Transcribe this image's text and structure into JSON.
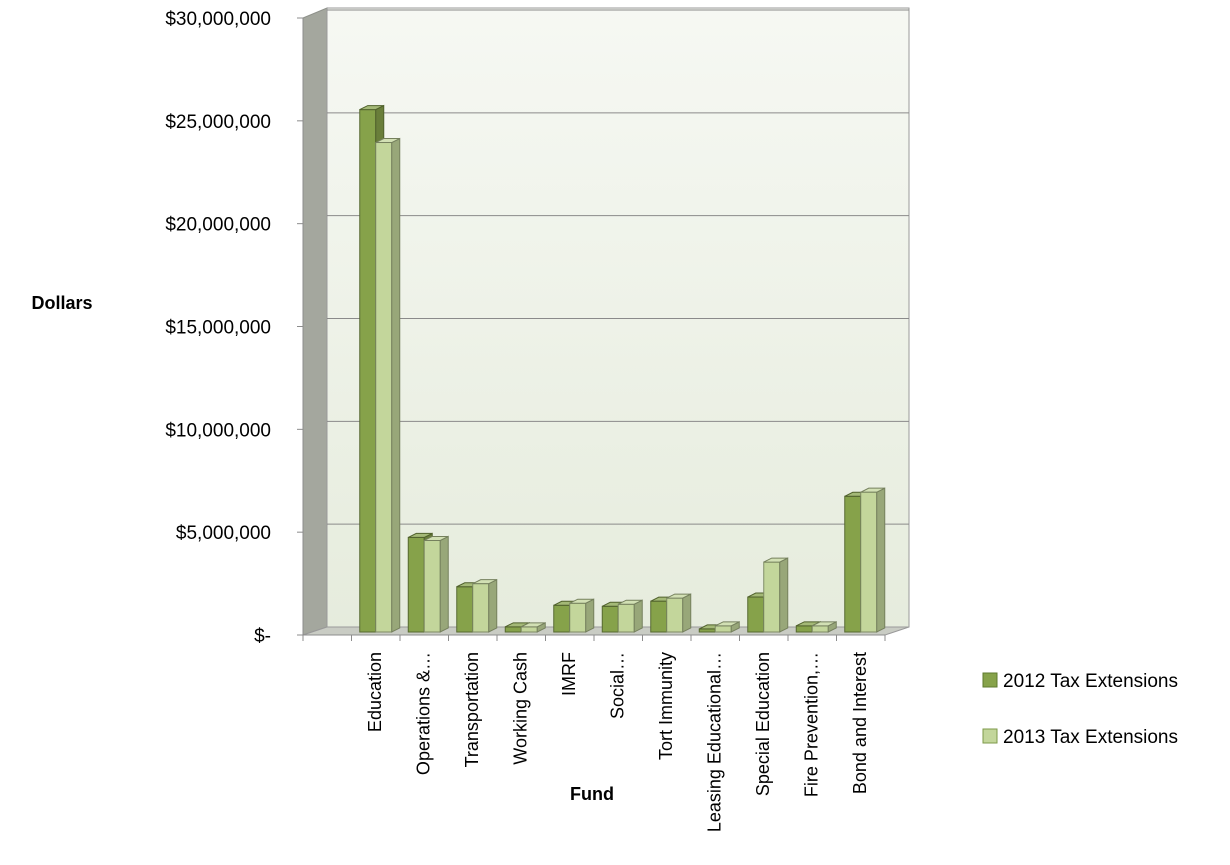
{
  "chart_data": {
    "type": "bar",
    "style": "3d-clustered-column",
    "title": "",
    "xlabel": "Fund",
    "ylabel": "Dollars",
    "ylim": [
      0,
      30000000
    ],
    "yticks": [
      0,
      5000000,
      10000000,
      15000000,
      20000000,
      25000000,
      30000000
    ],
    "ytick_labels": [
      "$-",
      "$5,000,000",
      "$10,000,000",
      "$15,000,000",
      "$20,000,000",
      "$25,000,000",
      "$30,000,000"
    ],
    "grid": true,
    "legend_position": "right",
    "categories": [
      "Education",
      "Operations &…",
      "Transportation",
      "Working Cash",
      "IMRF",
      "Social…",
      "Tort Immunity",
      "Leasing Educational…",
      "Special Education",
      "Fire Prevention,…",
      "Bond and Interest"
    ],
    "series": [
      {
        "name": "2012 Tax Extensions",
        "color": "#86A24A",
        "values": [
          25400000,
          4600000,
          2200000,
          250000,
          1300000,
          1250000,
          1500000,
          150000,
          1700000,
          300000,
          6600000
        ]
      },
      {
        "name": "2013 Tax Extensions",
        "color": "#C3D69B",
        "values": [
          23800000,
          4450000,
          2350000,
          250000,
          1400000,
          1350000,
          1650000,
          300000,
          3400000,
          300000,
          6800000
        ]
      }
    ]
  }
}
